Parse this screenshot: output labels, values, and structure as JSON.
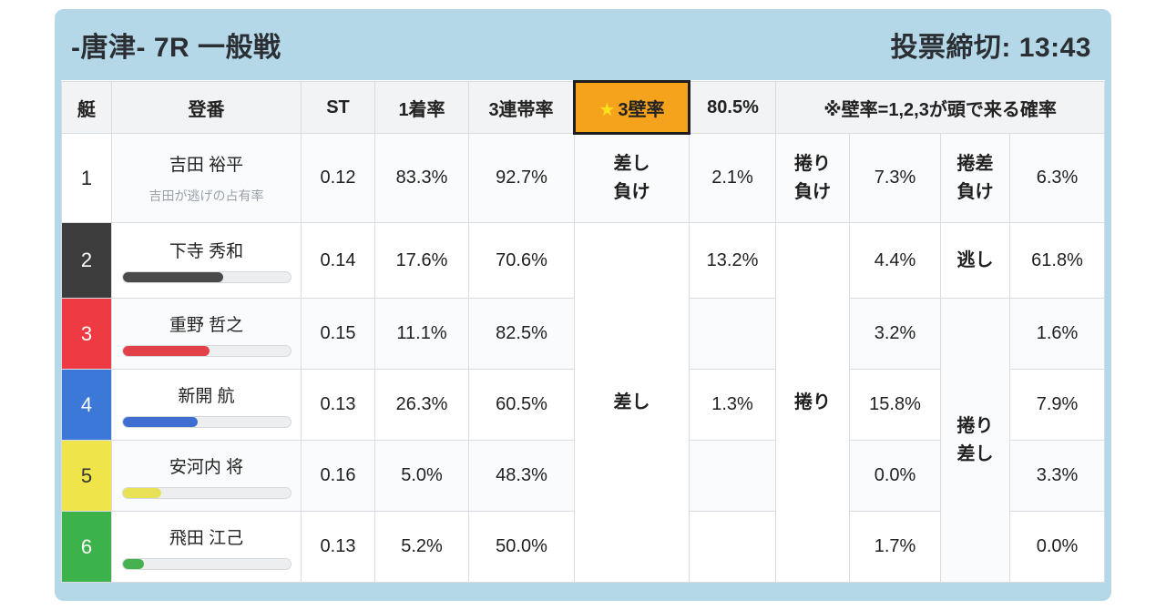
{
  "header": {
    "title": "-唐津- 7R 一般戦",
    "deadline": "投票締切: 13:43"
  },
  "colors": {
    "card_blue": "#b5d8e9",
    "wall3_orange": "#f5a31c",
    "wall3_star_yellow": "#ffe01a",
    "header_gray": "#f2f3f5"
  },
  "table": {
    "columns": {
      "boat": "艇",
      "entry": "登番",
      "st": "ST",
      "win1": "1着率",
      "top3": "3連帯率",
      "wall3_star": "★",
      "wall3": "3壁率",
      "wall3_value": "80.5%",
      "note": "※壁率=1,2,3が頭で来る確率"
    },
    "scenarios": {
      "sashi": {
        "row1": "差し\n負け",
        "merged": "差し"
      },
      "makuri": {
        "row1": "捲り\n負け",
        "merged": "捲り"
      },
      "makurizashi": {
        "row1": "捲差\n負け",
        "row2": "逃し",
        "merged": "捲り\n差し"
      }
    },
    "rows": [
      {
        "boat": "1",
        "boat_bg": "#ffffff",
        "boat_fg": "#222222",
        "name": "吉田 裕平",
        "subtitle": "吉田が逃げの占有率",
        "st": "0.12",
        "win1": "83.3%",
        "top3": "92.7%",
        "pct1": "2.1%",
        "pct2": "7.3%",
        "pct3": "6.3%"
      },
      {
        "boat": "2",
        "boat_bg": "#3d3d3d",
        "boat_fg": "#ffffff",
        "name": "下寺 秀和",
        "bar": 60,
        "bar_color": "#4a4a4a",
        "st": "0.14",
        "win1": "17.6%",
        "top3": "70.6%",
        "pct1": "13.2%",
        "pct2": "4.4%",
        "pct3": "61.8%"
      },
      {
        "boat": "3",
        "boat_bg": "#ee3a42",
        "boat_fg": "#ffffff",
        "name": "重野 哲之",
        "bar": 52,
        "bar_color": "#e2414a",
        "st": "0.15",
        "win1": "11.1%",
        "top3": "82.5%",
        "pct1": "",
        "pct2": "3.2%",
        "pct3": "1.6%"
      },
      {
        "boat": "4",
        "boat_bg": "#3c78d8",
        "boat_fg": "#ffffff",
        "name": "新開 航",
        "bar": 45,
        "bar_color": "#3e6fd0",
        "st": "0.13",
        "win1": "26.3%",
        "top3": "60.5%",
        "pct1": "1.3%",
        "pct2": "15.8%",
        "pct3": "7.9%"
      },
      {
        "boat": "5",
        "boat_bg": "#efe44a",
        "boat_fg": "#333333",
        "name": "安河内 将",
        "bar": 23,
        "bar_color": "#e9e257",
        "st": "0.16",
        "win1": "5.0%",
        "top3": "48.3%",
        "pct1": "",
        "pct2": "0.0%",
        "pct3": "3.3%"
      },
      {
        "boat": "6",
        "boat_bg": "#3cb24b",
        "boat_fg": "#ffffff",
        "name": "飛田 江己",
        "bar": 13,
        "bar_color": "#46b14f",
        "st": "0.13",
        "win1": "5.2%",
        "top3": "50.0%",
        "pct1": "",
        "pct2": "1.7%",
        "pct3": "0.0%"
      }
    ]
  }
}
